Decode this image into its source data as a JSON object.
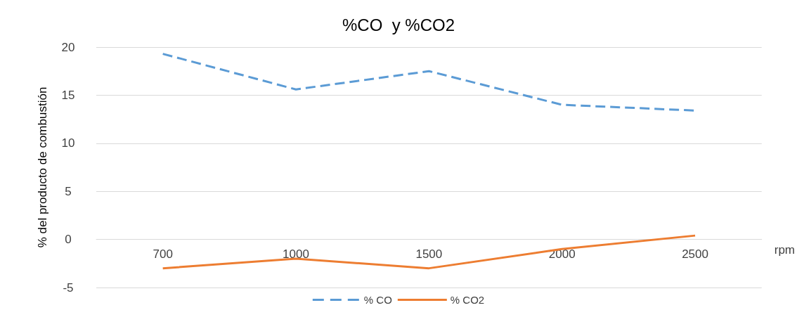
{
  "chart_data": {
    "type": "line",
    "title": "%CO  y %CO2",
    "xlabel": "rpm",
    "ylabel": "% del producto de combustión",
    "categories": [
      "700",
      "1000",
      "1500",
      "2000",
      "2500"
    ],
    "series": [
      {
        "name": "% CO",
        "color": "#5b9bd5",
        "line_style": "dashed",
        "values": [
          19.3,
          15.6,
          17.5,
          14.0,
          13.4
        ]
      },
      {
        "name": "% CO2",
        "color": "#ed7d31",
        "line_style": "solid",
        "values": [
          -3.0,
          -2.0,
          -3.0,
          -1.0,
          0.4
        ]
      }
    ],
    "ylim": [
      -5,
      20
    ],
    "yticks": [
      -5,
      0,
      5,
      10,
      15,
      20
    ],
    "grid": "y",
    "legend": "bottom",
    "marker": "none"
  }
}
